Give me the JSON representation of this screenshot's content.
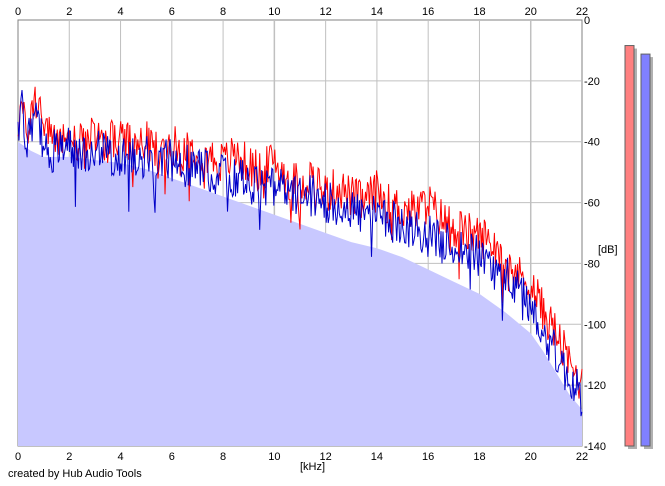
{
  "credit": "created by Hub Audio Tools",
  "chart_data": {
    "type": "line",
    "xlabel": "[kHz]",
    "ylabel": "[dB]",
    "xlim": [
      0,
      22
    ],
    "ylim": [
      -140,
      0
    ],
    "x_ticks": [
      0,
      2,
      4,
      6,
      8,
      10,
      12,
      14,
      16,
      18,
      20,
      22
    ],
    "y_ticks": [
      0,
      -20,
      -40,
      -60,
      -80,
      -100,
      -120,
      -140
    ],
    "grid": true,
    "colors": {
      "fill": "#c8c8ff",
      "grid": "#c0c0c0",
      "red": "#ff0000",
      "blue": "#0000c8"
    },
    "envelope": {
      "x": [
        0,
        0.5,
        1,
        2,
        3,
        4,
        5,
        6,
        7,
        8,
        9,
        10,
        11,
        12,
        13,
        14,
        15,
        16,
        17,
        18,
        19,
        20,
        20.5,
        21,
        21.5,
        22
      ],
      "y": [
        -40,
        -43,
        -45,
        -45,
        -46,
        -47,
        -49,
        -52,
        -55,
        -58,
        -61,
        -64,
        -67,
        -70,
        -73,
        -75,
        -78,
        -82,
        -86,
        -90,
        -96,
        -103,
        -109,
        -116,
        -123,
        -128
      ]
    },
    "series": [
      {
        "x": [
          0,
          0.1,
          0.2,
          0.3,
          0.45,
          0.6,
          0.8,
          1,
          1.3,
          1.6,
          2,
          2.5,
          3,
          3.5,
          4,
          4.5,
          5,
          5.5,
          6,
          6.5,
          7,
          7.5,
          8,
          8.5,
          9,
          9.5,
          10,
          10.5,
          11,
          11.5,
          12,
          12.5,
          13,
          13.5,
          14,
          14.5,
          15,
          15.5,
          16,
          16.5,
          17,
          17.5,
          18,
          18.5,
          19,
          19.5,
          20,
          20.5,
          21,
          21.5,
          22
        ],
        "y": [
          -35,
          -27,
          -31,
          -38,
          -33,
          -28,
          -26,
          -34,
          -40,
          -38,
          -39,
          -41,
          -38,
          -40,
          -39,
          -42,
          -40,
          -44,
          -41,
          -43,
          -42,
          -45,
          -47,
          -44,
          -48,
          -50,
          -46,
          -52,
          -54,
          -51,
          -57,
          -55,
          -58,
          -60,
          -56,
          -61,
          -62,
          -63,
          -60,
          -65,
          -68,
          -70,
          -71,
          -73,
          -77,
          -84,
          -86,
          -96,
          -103,
          -113,
          -120
        ]
      },
      {
        "x": [
          0,
          0.1,
          0.2,
          0.3,
          0.45,
          0.6,
          0.8,
          1,
          1.3,
          1.6,
          2,
          2.5,
          3,
          3.5,
          4,
          4.5,
          5,
          5.5,
          6,
          6.5,
          7,
          7.5,
          8,
          8.5,
          9,
          9.5,
          10,
          10.5,
          11,
          11.5,
          12,
          12.5,
          13,
          13.5,
          14,
          14.5,
          15,
          15.5,
          16,
          16.5,
          17,
          17.5,
          18,
          18.5,
          19,
          19.5,
          20,
          20.5,
          21,
          21.5,
          22
        ],
        "y": [
          -36,
          -25,
          -33,
          -40,
          -36,
          -32,
          -35,
          -42,
          -44,
          -41,
          -42,
          -43,
          -43,
          -44,
          -45,
          -45,
          -45,
          -46,
          -46,
          -48,
          -48,
          -50,
          -51,
          -51,
          -54,
          -55,
          -55,
          -57,
          -58,
          -58,
          -60,
          -61,
          -62,
          -64,
          -65,
          -66,
          -67,
          -69,
          -71,
          -73,
          -74,
          -76,
          -78,
          -80,
          -84,
          -89,
          -94,
          -102,
          -110,
          -118,
          -124
        ]
      }
    ]
  },
  "meters": [
    {
      "level": 0.94,
      "color": "#ff8080"
    },
    {
      "level": 0.92,
      "color": "#8080ff"
    }
  ]
}
